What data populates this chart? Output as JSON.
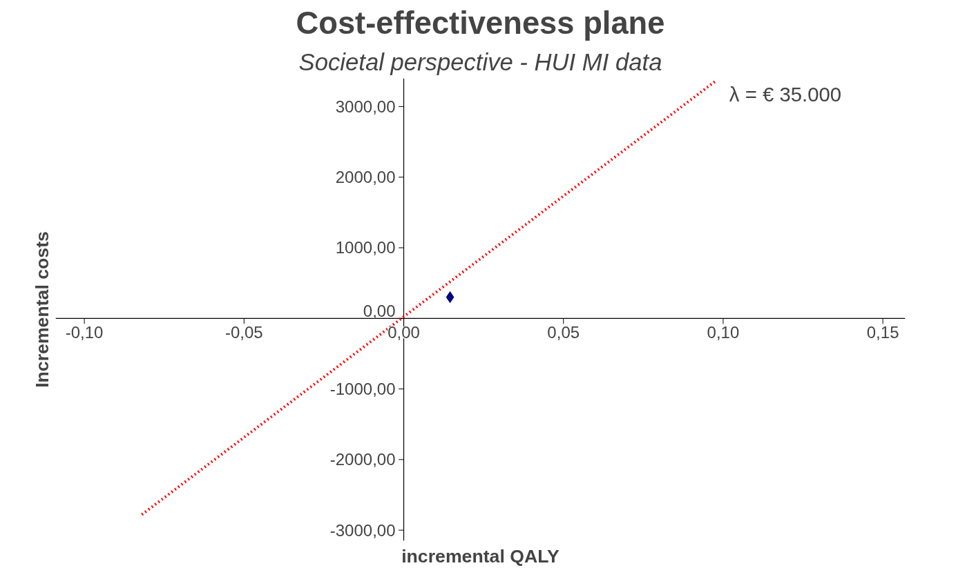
{
  "chart_data": {
    "type": "scatter",
    "title": "Cost-effectiveness plane",
    "subtitle": "Societal perspective - HUI MI data",
    "xlabel": "incremental QALY",
    "ylabel": "Incremental costs",
    "xlim": [
      -0.109,
      0.157
    ],
    "ylim": [
      -3150,
      3400
    ],
    "xticks": [
      {
        "value": -0.1,
        "label": "-0,10"
      },
      {
        "value": -0.05,
        "label": "-0,05"
      },
      {
        "value": 0,
        "label": "0,00"
      },
      {
        "value": 0.05,
        "label": "0,05"
      },
      {
        "value": 0.1,
        "label": "0,10"
      },
      {
        "value": 0.15,
        "label": "0,15"
      }
    ],
    "yticks": [
      {
        "value": -3000,
        "label": "-3000,00"
      },
      {
        "value": -2000,
        "label": "-2000,00"
      },
      {
        "value": -1000,
        "label": "-1000,00"
      },
      {
        "value": 0,
        "label": "0,00"
      },
      {
        "value": 1000,
        "label": "1000,00"
      },
      {
        "value": 2000,
        "label": "2000,00"
      },
      {
        "value": 3000,
        "label": "3000,00"
      }
    ],
    "grid": false,
    "legend": false,
    "series": [
      {
        "type": "line",
        "name": "λ = € 35.000",
        "color": "#ff0000",
        "line_style": "dotted",
        "x": [
          -0.082,
          0.0976
        ],
        "values": [
          -2780,
          3360
        ]
      },
      {
        "color": "#000080",
        "marker": "diamond",
        "x": [
          0.0145
        ],
        "values": [
          300
        ]
      }
    ]
  }
}
